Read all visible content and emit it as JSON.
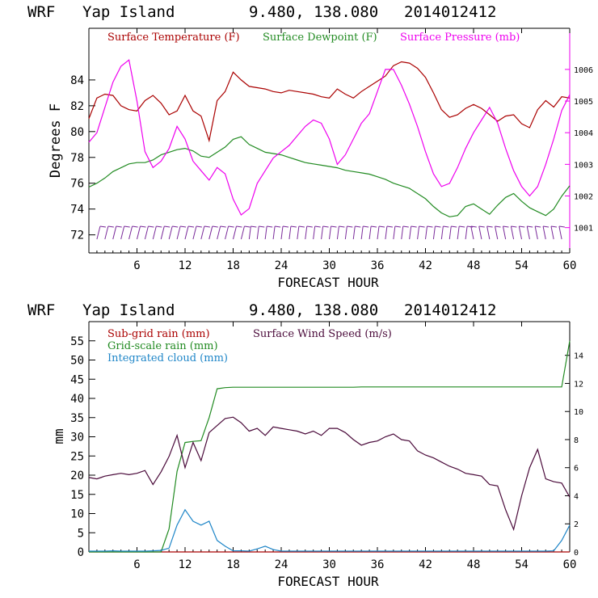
{
  "colors": {
    "temperature": "#aa0000",
    "dewpoint": "#228b22",
    "pressure": "#ee00ee",
    "wind_barbs": "#7a2a9a",
    "subgrid_rain": "#aa0000",
    "gridscale_rain": "#228b22",
    "cloud": "#1f86c8",
    "wind_speed": "#4a0a3a",
    "axes": "#000000"
  },
  "chart_data": [
    {
      "type": "line",
      "header": {
        "model": "WRF",
        "location": "Yap Island",
        "coords": "9.480, 138.080",
        "run": "2014012412"
      },
      "xlabel": "FORECAST HOUR",
      "ylabel": "Degrees F",
      "xlim": [
        0,
        60
      ],
      "xticks": [
        "6",
        "12",
        "18",
        "24",
        "30",
        "36",
        "42",
        "48",
        "54",
        "60"
      ],
      "ylim": [
        70.6,
        88.0
      ],
      "yticks": [
        "72",
        "74",
        "76",
        "78",
        "80",
        "82",
        "84"
      ],
      "y2lim": [
        1000.2,
        1007.3
      ],
      "y2ticks": [
        "1001",
        "1002",
        "1003",
        "1004",
        "1005",
        "1006"
      ],
      "legend": [
        "Surface Temperature (F)",
        "Surface Dewpoint (F)",
        "Surface Pressure (mb)"
      ],
      "x": [
        0,
        1,
        2,
        3,
        4,
        5,
        6,
        7,
        8,
        9,
        10,
        11,
        12,
        13,
        14,
        15,
        16,
        17,
        18,
        19,
        20,
        21,
        22,
        23,
        24,
        25,
        26,
        27,
        28,
        29,
        30,
        31,
        32,
        33,
        34,
        35,
        36,
        37,
        38,
        39,
        40,
        41,
        42,
        43,
        44,
        45,
        46,
        47,
        48,
        49,
        50,
        51,
        52,
        53,
        54,
        55,
        56,
        57,
        58,
        59,
        60
      ],
      "series": [
        {
          "name": "Surface Temperature (F)",
          "axis": "left",
          "values": [
            81.0,
            82.6,
            82.9,
            82.8,
            82.0,
            81.7,
            81.6,
            82.4,
            82.8,
            82.2,
            81.3,
            81.6,
            82.8,
            81.6,
            81.2,
            79.3,
            82.4,
            83.1,
            84.6,
            84.0,
            83.5,
            83.4,
            83.3,
            83.1,
            83.0,
            83.2,
            83.1,
            83.0,
            82.9,
            82.7,
            82.6,
            83.3,
            82.9,
            82.6,
            83.1,
            83.5,
            83.9,
            84.3,
            85.1,
            85.4,
            85.3,
            84.9,
            84.2,
            83.0,
            81.7,
            81.1,
            81.3,
            81.8,
            82.1,
            81.8,
            81.3,
            80.8,
            81.2,
            81.3,
            80.6,
            80.3,
            81.7,
            82.4,
            81.9,
            82.7,
            82.6
          ]
        },
        {
          "name": "Surface Dewpoint (F)",
          "axis": "left",
          "values": [
            75.7,
            76.0,
            76.4,
            76.9,
            77.2,
            77.5,
            77.6,
            77.6,
            77.8,
            78.2,
            78.4,
            78.6,
            78.7,
            78.5,
            78.1,
            78.0,
            78.4,
            78.8,
            79.4,
            79.6,
            79.0,
            78.7,
            78.4,
            78.3,
            78.2,
            78.0,
            77.8,
            77.6,
            77.5,
            77.4,
            77.3,
            77.2,
            77.0,
            76.9,
            76.8,
            76.7,
            76.5,
            76.3,
            76.0,
            75.8,
            75.6,
            75.2,
            74.8,
            74.2,
            73.7,
            73.4,
            73.5,
            74.2,
            74.4,
            74.0,
            73.6,
            74.3,
            74.9,
            75.2,
            74.6,
            74.1,
            73.8,
            73.5,
            74.0,
            75.0,
            75.8
          ]
        },
        {
          "name": "Surface Pressure (mb)",
          "axis": "right",
          "values": [
            1003.7,
            1004.0,
            1004.8,
            1005.6,
            1006.1,
            1006.3,
            1005.0,
            1003.4,
            1002.9,
            1003.1,
            1003.5,
            1004.2,
            1003.8,
            1003.1,
            1002.8,
            1002.5,
            1002.9,
            1002.7,
            1001.9,
            1001.4,
            1001.6,
            1002.4,
            1002.8,
            1003.2,
            1003.4,
            1003.6,
            1003.9,
            1004.2,
            1004.4,
            1004.3,
            1003.8,
            1003.0,
            1003.3,
            1003.8,
            1004.3,
            1004.6,
            1005.3,
            1006.0,
            1006.0,
            1005.5,
            1004.9,
            1004.2,
            1003.4,
            1002.7,
            1002.3,
            1002.4,
            1002.9,
            1003.5,
            1004.0,
            1004.4,
            1004.8,
            1004.3,
            1003.5,
            1002.8,
            1002.3,
            1002.0,
            1002.3,
            1003.0,
            1003.8,
            1004.7,
            1005.2
          ]
        }
      ]
    },
    {
      "type": "line",
      "header": {
        "model": "WRF",
        "location": "Yap Island",
        "coords": "9.480, 138.080",
        "run": "2014012412"
      },
      "xlabel": "FORECAST HOUR",
      "ylabel": "mm",
      "xlim": [
        0,
        60
      ],
      "xticks": [
        "6",
        "12",
        "18",
        "24",
        "30",
        "36",
        "42",
        "48",
        "54",
        "60"
      ],
      "ylim": [
        0,
        60
      ],
      "yticks": [
        "0",
        "5",
        "10",
        "15",
        "20",
        "25",
        "30",
        "35",
        "40",
        "45",
        "50",
        "55"
      ],
      "y2lim": [
        0,
        16.4
      ],
      "y2ticks": [
        "0",
        "2",
        "4",
        "6",
        "8",
        "10",
        "12",
        "14"
      ],
      "legend": [
        "Sub-grid rain (mm)",
        "Grid-scale rain (mm)",
        "Integrated cloud (mm)",
        "Surface Wind Speed (m/s)"
      ],
      "x": [
        0,
        1,
        2,
        3,
        4,
        5,
        6,
        7,
        8,
        9,
        10,
        11,
        12,
        13,
        14,
        15,
        16,
        17,
        18,
        19,
        20,
        21,
        22,
        23,
        24,
        25,
        26,
        27,
        28,
        29,
        30,
        31,
        32,
        33,
        34,
        35,
        36,
        37,
        38,
        39,
        40,
        41,
        42,
        43,
        44,
        45,
        46,
        47,
        48,
        49,
        50,
        51,
        52,
        53,
        54,
        55,
        56,
        57,
        58,
        59,
        60
      ],
      "series": [
        {
          "name": "Sub-grid rain (mm)",
          "axis": "left",
          "values": [
            0,
            0,
            0,
            0,
            0,
            0,
            0,
            0,
            0,
            0,
            0,
            0,
            0,
            0,
            0,
            0,
            0,
            0,
            0,
            0,
            0,
            0,
            0,
            0,
            0,
            0,
            0,
            0,
            0,
            0,
            0,
            0,
            0,
            0,
            0,
            0,
            0,
            0,
            0,
            0,
            0,
            0,
            0,
            0,
            0,
            0,
            0,
            0,
            0,
            0,
            0,
            0,
            0,
            0,
            0,
            0,
            0,
            0,
            0,
            0,
            0
          ]
        },
        {
          "name": "Grid-scale rain (mm)",
          "axis": "left",
          "values": [
            0,
            0,
            0,
            0,
            0,
            0,
            0,
            0,
            0,
            0,
            6.0,
            21.0,
            28.5,
            28.8,
            29.0,
            35.0,
            42.5,
            42.8,
            42.9,
            42.9,
            42.9,
            42.9,
            42.9,
            42.9,
            42.9,
            42.9,
            42.9,
            42.9,
            42.9,
            42.9,
            42.9,
            42.9,
            42.9,
            42.9,
            43.0,
            43.0,
            43.0,
            43.0,
            43.0,
            43.0,
            43.0,
            43.0,
            43.0,
            43.0,
            43.0,
            43.0,
            43.0,
            43.0,
            43.0,
            43.0,
            43.0,
            43.0,
            43.0,
            43.0,
            43.0,
            43.0,
            43.0,
            43.0,
            43.0,
            43.0,
            55.0
          ]
        },
        {
          "name": "Integrated cloud (mm)",
          "axis": "left",
          "values": [
            0.2,
            0.2,
            0.2,
            0.3,
            0.2,
            0.2,
            0.2,
            0.2,
            0.3,
            0.4,
            1.0,
            7.0,
            11.0,
            8.0,
            7.0,
            8.0,
            3.0,
            1.5,
            0.3,
            0.3,
            0.2,
            0.8,
            1.5,
            0.6,
            0.2,
            0.2,
            0.2,
            0.2,
            0.2,
            0.2,
            0.2,
            0.2,
            0.2,
            0.2,
            0.2,
            0.2,
            0.2,
            0.2,
            0.2,
            0.2,
            0.2,
            0.2,
            0.2,
            0.2,
            0.2,
            0.2,
            0.2,
            0.2,
            0.2,
            0.2,
            0.2,
            0.2,
            0.2,
            0.2,
            0.2,
            0.2,
            0.2,
            0.2,
            0.3,
            3.0,
            7.0
          ]
        },
        {
          "name": "Surface Wind Speed (m/s)",
          "axis": "right",
          "values": [
            5.3,
            5.2,
            5.4,
            5.5,
            5.6,
            5.5,
            5.6,
            5.8,
            4.8,
            5.7,
            6.8,
            8.3,
            6.0,
            7.8,
            6.5,
            8.5,
            9.0,
            9.5,
            9.6,
            9.2,
            8.6,
            8.8,
            8.3,
            8.9,
            8.8,
            8.7,
            8.6,
            8.4,
            8.6,
            8.3,
            8.8,
            8.8,
            8.5,
            8.0,
            7.6,
            7.8,
            7.9,
            8.2,
            8.4,
            8.0,
            7.9,
            7.2,
            6.9,
            6.7,
            6.4,
            6.1,
            5.9,
            5.6,
            5.5,
            5.4,
            4.8,
            4.7,
            3.0,
            1.6,
            4.0,
            6.0,
            7.3,
            5.2,
            5.0,
            4.9,
            3.9
          ]
        }
      ]
    }
  ]
}
